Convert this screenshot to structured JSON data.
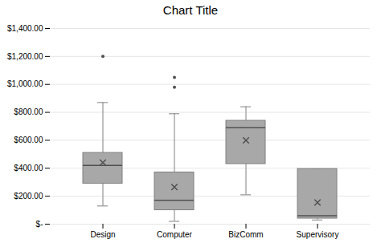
{
  "chart_data": {
    "type": "box",
    "title": "Chart Title",
    "categories": [
      "Design",
      "Computer",
      "BizComm",
      "Supervisory"
    ],
    "min": [
      130,
      20,
      210,
      30
    ],
    "q1": [
      290,
      100,
      430,
      40
    ],
    "median": [
      420,
      170,
      690,
      60
    ],
    "q3": [
      510,
      370,
      740,
      395
    ],
    "max": [
      870,
      790,
      840,
      395
    ],
    "mean": [
      440,
      265,
      600,
      155
    ],
    "outliers": [
      [
        1200
      ],
      [
        980,
        1050
      ],
      [],
      []
    ],
    "color": "#a8a8a8",
    "ylim": [
      0,
      1400
    ],
    "yticks": [
      {
        "value": 0,
        "label": "$-"
      },
      {
        "value": 200,
        "label": "$200.00"
      },
      {
        "value": 400,
        "label": "$400.00"
      },
      {
        "value": 600,
        "label": "$600.00"
      },
      {
        "value": 800,
        "label": "$800.00"
      },
      {
        "value": 1000,
        "label": "$1,000.00"
      },
      {
        "value": 1200,
        "label": "$1,200.00"
      },
      {
        "value": 1400,
        "label": "$1,400.00"
      }
    ],
    "grid": true
  }
}
